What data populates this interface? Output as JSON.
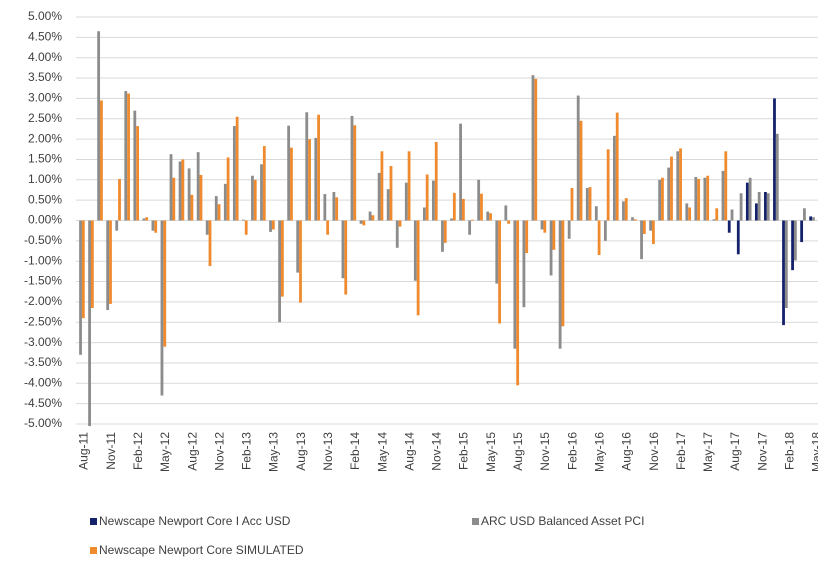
{
  "chart_data": {
    "type": "bar",
    "categories": [
      "Aug-11",
      null,
      null,
      "Nov-11",
      null,
      null,
      "Feb-12",
      null,
      null,
      "May-12",
      null,
      null,
      "Aug-12",
      null,
      null,
      "Nov-12",
      null,
      null,
      "Feb-13",
      null,
      null,
      "May-13",
      null,
      null,
      "Aug-13",
      null,
      null,
      "Nov-13",
      null,
      null,
      "Feb-14",
      null,
      null,
      "May-14",
      null,
      null,
      "Aug-14",
      null,
      null,
      "Nov-14",
      null,
      null,
      "Feb-15",
      null,
      null,
      "May-15",
      null,
      null,
      "Aug-15",
      null,
      null,
      "Nov-15",
      null,
      null,
      "Feb-16",
      null,
      null,
      "May-16",
      null,
      null,
      "Aug-16",
      null,
      null,
      "Nov-16",
      null,
      null,
      "Feb-17",
      null,
      null,
      "May-17",
      null,
      null,
      "Aug-17",
      null,
      null,
      "Nov-17",
      null,
      null,
      "Feb-18",
      null,
      null,
      "May-18"
    ],
    "series": [
      {
        "name": "Newscape Newport Core I Acc USD",
        "color": "#14216b",
        "values": [
          null,
          null,
          null,
          null,
          null,
          null,
          null,
          null,
          null,
          null,
          null,
          null,
          null,
          null,
          null,
          null,
          null,
          null,
          null,
          null,
          null,
          null,
          null,
          null,
          null,
          null,
          null,
          null,
          null,
          null,
          null,
          null,
          null,
          null,
          null,
          null,
          null,
          null,
          null,
          null,
          null,
          null,
          null,
          null,
          null,
          null,
          null,
          null,
          null,
          null,
          null,
          null,
          null,
          null,
          null,
          null,
          null,
          null,
          null,
          null,
          null,
          null,
          null,
          null,
          null,
          null,
          null,
          null,
          null,
          null,
          null,
          null,
          -0.3,
          -0.83,
          0.93,
          0.42,
          0.7,
          3.0,
          -2.57,
          -1.22,
          -0.53,
          0.1
        ]
      },
      {
        "name": "ARC USD Balanced Asset PCI",
        "color": "#8c8c8c",
        "values": [
          -3.3,
          -5.05,
          4.65,
          -2.2,
          -0.25,
          3.18,
          2.7,
          0.05,
          -0.25,
          -4.3,
          1.63,
          1.45,
          1.28,
          1.68,
          -0.35,
          0.6,
          0.9,
          2.32,
          0.02,
          1.1,
          1.38,
          -0.28,
          -2.5,
          2.33,
          -1.28,
          2.66,
          2.03,
          0.65,
          0.7,
          -1.42,
          2.57,
          -0.08,
          0.22,
          1.17,
          0.77,
          -0.67,
          0.93,
          -1.48,
          0.32,
          0.98,
          -0.77,
          0.05,
          2.38,
          -0.35,
          1.0,
          0.22,
          -1.55,
          0.37,
          -3.15,
          -2.13,
          3.57,
          -0.22,
          -1.35,
          -3.15,
          -0.45,
          3.07,
          0.8,
          0.35,
          -0.5,
          2.08,
          0.47,
          0.08,
          -0.95,
          -0.25,
          1.0,
          1.3,
          1.7,
          0.42,
          1.07,
          1.05,
          0.03,
          1.22,
          0.27,
          0.67,
          1.05,
          0.7,
          0.67,
          2.13,
          -2.15,
          -0.98,
          0.3,
          0.08
        ]
      },
      {
        "name": "Newscape Newport Core SIMULATED",
        "color": "#ef8a2e",
        "values": [
          -2.4,
          -2.15,
          2.95,
          -2.05,
          1.02,
          3.12,
          2.32,
          0.08,
          -0.3,
          -3.1,
          1.05,
          1.5,
          0.63,
          1.12,
          -1.12,
          0.4,
          1.55,
          2.55,
          -0.35,
          1.0,
          1.83,
          -0.22,
          -1.87,
          1.79,
          -2.02,
          2.0,
          2.6,
          -0.35,
          0.57,
          -1.82,
          2.34,
          -0.12,
          0.13,
          1.7,
          1.34,
          -0.15,
          1.7,
          -2.33,
          1.13,
          1.93,
          -0.55,
          0.68,
          0.53,
          0.02,
          0.66,
          0.18,
          -2.53,
          -0.08,
          -4.05,
          -0.8,
          3.48,
          -0.3,
          -0.72,
          -2.6,
          0.8,
          2.45,
          0.82,
          -0.85,
          1.75,
          2.65,
          0.55,
          0.03,
          -0.33,
          -0.58,
          1.05,
          1.57,
          1.77,
          0.32,
          1.02,
          1.1,
          0.3,
          1.7,
          null,
          null,
          null,
          null,
          null,
          null,
          null,
          null,
          null,
          null
        ]
      }
    ],
    "ylim": [
      -5,
      5
    ],
    "yticks": [
      {
        "value": -5,
        "label": "-5.00%"
      },
      {
        "value": -4.5,
        "label": "-4.50%"
      },
      {
        "value": -4,
        "label": "-4.00%"
      },
      {
        "value": -3.5,
        "label": "-3.50%"
      },
      {
        "value": -3,
        "label": "-3.00%"
      },
      {
        "value": -2.5,
        "label": "-2.50%"
      },
      {
        "value": -2,
        "label": "-2.00%"
      },
      {
        "value": -1.5,
        "label": "-1.50%"
      },
      {
        "value": -1,
        "label": "-1.00%"
      },
      {
        "value": -0.5,
        "label": "-0.50%"
      },
      {
        "value": 0,
        "label": "0.00%"
      },
      {
        "value": 0.5,
        "label": "0.50%"
      },
      {
        "value": 1,
        "label": "1.00%"
      },
      {
        "value": 1.5,
        "label": "1.50%"
      },
      {
        "value": 2,
        "label": "2.00%"
      },
      {
        "value": 2.5,
        "label": "2.50%"
      },
      {
        "value": 3,
        "label": "3.00%"
      },
      {
        "value": 3.5,
        "label": "3.50%"
      },
      {
        "value": 4,
        "label": "4.00%"
      },
      {
        "value": 4.5,
        "label": "4.50%"
      },
      {
        "value": 5,
        "label": "5.00%"
      }
    ],
    "grid": true
  }
}
